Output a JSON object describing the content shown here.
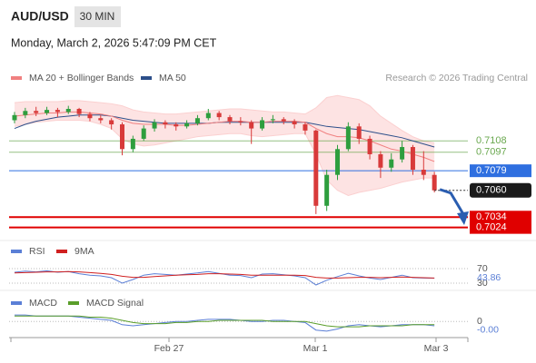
{
  "chart_data": {
    "type": "candlestick",
    "title": "AUD/USD",
    "timeframe": "30 MIN",
    "datetime": "Monday, March 2, 2026 5:47:09 PM CET",
    "legend": [
      {
        "name": "MA 20 + Bollinger Bands",
        "color": "#f08080"
      },
      {
        "name": "MA 50",
        "color": "#2d4f8a"
      }
    ],
    "credit": "Research © 2026 Trading Central",
    "ylim": [
      0.7014,
      0.7161
    ],
    "candles": [
      [
        0.7128,
        0.7136,
        0.7125,
        0.7133
      ],
      [
        0.7133,
        0.714,
        0.713,
        0.7137
      ],
      [
        0.7137,
        0.7141,
        0.7132,
        0.7135
      ],
      [
        0.7135,
        0.7141,
        0.7133,
        0.7138
      ],
      [
        0.7138,
        0.714,
        0.7131,
        0.7136
      ],
      [
        0.7136,
        0.7142,
        0.7134,
        0.7139
      ],
      [
        0.7139,
        0.714,
        0.7131,
        0.7134
      ],
      [
        0.7134,
        0.7136,
        0.7127,
        0.713
      ],
      [
        0.713,
        0.7133,
        0.7125,
        0.7128
      ],
      [
        0.7128,
        0.713,
        0.7119,
        0.7124
      ],
      [
        0.7124,
        0.7126,
        0.7094,
        0.71
      ],
      [
        0.71,
        0.7113,
        0.7097,
        0.711
      ],
      [
        0.711,
        0.7123,
        0.7108,
        0.712
      ],
      [
        0.712,
        0.7129,
        0.7117,
        0.7126
      ],
      [
        0.7126,
        0.7128,
        0.712,
        0.7124
      ],
      [
        0.7124,
        0.7126,
        0.7118,
        0.7122
      ],
      [
        0.7122,
        0.7128,
        0.712,
        0.7125
      ],
      [
        0.7125,
        0.7133,
        0.7123,
        0.713
      ],
      [
        0.713,
        0.7139,
        0.7128,
        0.7135
      ],
      [
        0.7135,
        0.7137,
        0.7128,
        0.7131
      ],
      [
        0.7131,
        0.7133,
        0.7124,
        0.7127
      ],
      [
        0.7127,
        0.7131,
        0.7123,
        0.7126
      ],
      [
        0.7126,
        0.7128,
        0.7105,
        0.712
      ],
      [
        0.712,
        0.7131,
        0.7118,
        0.7128
      ],
      [
        0.7128,
        0.7133,
        0.7125,
        0.7129
      ],
      [
        0.7129,
        0.7131,
        0.7124,
        0.7127
      ],
      [
        0.7127,
        0.7129,
        0.712,
        0.7124
      ],
      [
        0.7124,
        0.7126,
        0.7114,
        0.7118
      ],
      [
        0.7118,
        0.7119,
        0.7037,
        0.7045
      ],
      [
        0.7045,
        0.708,
        0.704,
        0.7075
      ],
      [
        0.7075,
        0.7104,
        0.707,
        0.71
      ],
      [
        0.71,
        0.7126,
        0.7098,
        0.7122
      ],
      [
        0.7122,
        0.7125,
        0.7105,
        0.711
      ],
      [
        0.711,
        0.7113,
        0.709,
        0.7095
      ],
      [
        0.7095,
        0.7098,
        0.7072,
        0.7082
      ],
      [
        0.7082,
        0.7096,
        0.7078,
        0.709
      ],
      [
        0.709,
        0.7108,
        0.7087,
        0.7102
      ],
      [
        0.7102,
        0.7104,
        0.7075,
        0.708
      ],
      [
        0.708,
        0.7098,
        0.707,
        0.7075
      ],
      [
        0.7075,
        0.7078,
        0.7058,
        0.706
      ]
    ],
    "up_color": "#2e9e3e",
    "down_color": "#d83a3a",
    "ma20": [
      0.7132,
      0.7133,
      0.7134,
      0.7135,
      0.7135,
      0.7136,
      0.7136,
      0.7135,
      0.7134,
      0.7132,
      0.7128,
      0.7125,
      0.7124,
      0.7124,
      0.7124,
      0.7123,
      0.7123,
      0.7124,
      0.7125,
      0.7126,
      0.7127,
      0.7127,
      0.7126,
      0.7126,
      0.7127,
      0.7127,
      0.7127,
      0.7126,
      0.712,
      0.7115,
      0.7112,
      0.7112,
      0.7111,
      0.7108,
      0.7104,
      0.71,
      0.7098,
      0.7095,
      0.7092,
      0.7088
    ],
    "ma50": [
      0.712,
      0.7124,
      0.7127,
      0.7129,
      0.7131,
      0.7132,
      0.7133,
      0.7133,
      0.7133,
      0.7132,
      0.713,
      0.7128,
      0.7127,
      0.7126,
      0.7125,
      0.7125,
      0.7125,
      0.7125,
      0.7125,
      0.7126,
      0.7126,
      0.7126,
      0.7126,
      0.7126,
      0.7126,
      0.7126,
      0.7126,
      0.7126,
      0.7124,
      0.7122,
      0.7121,
      0.712,
      0.7119,
      0.7117,
      0.7115,
      0.7113,
      0.7111,
      0.7108,
      0.7105,
      0.7102
    ],
    "bb_upper": [
      0.7145,
      0.7146,
      0.7146,
      0.7146,
      0.7146,
      0.7147,
      0.7147,
      0.7146,
      0.7145,
      0.7144,
      0.7142,
      0.7138,
      0.7136,
      0.7135,
      0.7134,
      0.7134,
      0.7135,
      0.7136,
      0.7137,
      0.7138,
      0.7139,
      0.7139,
      0.7138,
      0.7137,
      0.7136,
      0.7136,
      0.7135,
      0.7134,
      0.714,
      0.715,
      0.7152,
      0.715,
      0.7148,
      0.7142,
      0.7132,
      0.7125,
      0.7118,
      0.7112,
      0.7108,
      0.7106
    ],
    "bb_lower": [
      0.7122,
      0.7124,
      0.7126,
      0.7127,
      0.7128,
      0.7128,
      0.7128,
      0.7127,
      0.7124,
      0.712,
      0.711,
      0.7105,
      0.7103,
      0.7104,
      0.7106,
      0.7108,
      0.711,
      0.7112,
      0.7113,
      0.7114,
      0.7115,
      0.7115,
      0.7113,
      0.7112,
      0.7113,
      0.7114,
      0.7115,
      0.7115,
      0.7095,
      0.707,
      0.706,
      0.7055,
      0.7058,
      0.706,
      0.7062,
      0.7065,
      0.7068,
      0.707,
      0.7072,
      0.7072
    ],
    "levels": [
      {
        "value": 0.7108,
        "color": "#6aa84f"
      },
      {
        "value": 0.7097,
        "color": "#6aa84f"
      },
      {
        "value": 0.7079,
        "color": "#2f6fe0"
      },
      {
        "value": 0.7034,
        "color": "#e00000"
      },
      {
        "value": 0.7024,
        "color": "#e00000"
      }
    ],
    "current_price": {
      "value": 0.706,
      "label": "0.7060"
    },
    "x_labels": [
      "Feb 27",
      "Mar 1",
      "Mar 3"
    ],
    "rsi": {
      "series": [
        {
          "name": "RSI",
          "color": "#5b7fd6",
          "values": [
            60,
            63,
            61,
            64,
            60,
            62,
            56,
            52,
            50,
            45,
            30,
            40,
            52,
            56,
            54,
            52,
            55,
            58,
            62,
            57,
            52,
            51,
            45,
            55,
            56,
            53,
            50,
            45,
            25,
            38,
            48,
            57,
            50,
            44,
            40,
            46,
            52,
            45,
            44,
            43.86
          ]
        },
        {
          "name": "9MA",
          "color": "#d02020",
          "values": [
            58,
            59,
            60,
            61,
            61,
            62,
            61,
            59,
            57,
            54,
            49,
            46,
            46,
            48,
            50,
            52,
            53,
            54,
            56,
            56,
            55,
            54,
            52,
            52,
            52,
            52,
            52,
            51,
            46,
            44,
            44,
            45,
            46,
            46,
            45,
            46,
            47,
            46,
            45,
            44
          ]
        }
      ],
      "ylim": [
        15,
        97.5
      ],
      "yticks": [
        70,
        30
      ]
    },
    "macd": {
      "series": [
        {
          "name": "MACD",
          "color": "#5b7fd6",
          "values": [
            0.0006,
            0.0006,
            0.0005,
            0.0005,
            0.0005,
            0.0005,
            0.0004,
            0.0003,
            0.0002,
            0.0001,
            -0.0003,
            -0.0004,
            -0.0003,
            -0.0002,
            -0.0001,
            0,
            0,
            0.0001,
            0.0002,
            0.0002,
            0.0002,
            0.0001,
            0,
            0,
            0.0001,
            0.0001,
            0,
            -0.0001,
            -0.0008,
            -0.0009,
            -0.0007,
            -0.0004,
            -0.0003,
            -0.0004,
            -0.0005,
            -0.0004,
            -0.0003,
            -0.0003,
            -0.0003,
            -0.0004
          ]
        },
        {
          "name": "MACD Signal",
          "color": "#5a9e2a",
          "values": [
            0.0005,
            0.0005,
            0.0005,
            0.0005,
            0.0005,
            0.0005,
            0.0005,
            0.0004,
            0.0004,
            0.0003,
            0.0001,
            -0.0001,
            -0.0002,
            -0.0002,
            -0.0002,
            -0.0001,
            -0.0001,
            0,
            0,
            0.0001,
            0.0001,
            0.0001,
            0.0001,
            0.0001,
            0,
            0,
            0,
            0,
            -0.0002,
            -0.0004,
            -0.0005,
            -0.0005,
            -0.0005,
            -0.0004,
            -0.0004,
            -0.0004,
            -0.0004,
            -0.0003,
            -0.0003,
            -0.0003
          ]
        }
      ],
      "ylim": [
        -0.0015,
        0.0012
      ],
      "yticks": [
        0
      ],
      "value_label": "-0.00"
    }
  }
}
